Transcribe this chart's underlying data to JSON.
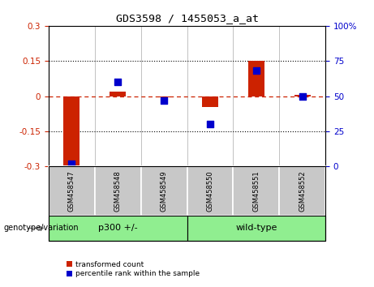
{
  "title": "GDS3598 / 1455053_a_at",
  "samples": [
    "GSM458547",
    "GSM458548",
    "GSM458549",
    "GSM458550",
    "GSM458551",
    "GSM458552"
  ],
  "red_values": [
    -0.295,
    0.018,
    -0.004,
    -0.048,
    0.15,
    0.004
  ],
  "blue_values_pct": [
    2,
    60,
    47,
    30,
    68,
    50
  ],
  "ylim_left": [
    -0.3,
    0.3
  ],
  "ylim_right": [
    0,
    100
  ],
  "yticks_left": [
    -0.3,
    -0.15,
    0,
    0.15,
    0.3
  ],
  "yticks_right": [
    0,
    25,
    50,
    75,
    100
  ],
  "hlines_dotted": [
    0.15,
    -0.15
  ],
  "red_color": "#CC2200",
  "blue_color": "#0000CC",
  "bar_width": 0.35,
  "blue_marker_size": 35,
  "legend_red_label": "transformed count",
  "legend_blue_label": "percentile rank within the sample",
  "genotype_label": "genotype/variation",
  "group_p300_label": "p300 +/-",
  "group_wt_label": "wild-type",
  "group_color": "#90EE90",
  "sample_box_color": "#C8C8C8",
  "plot_bg": "#FFFFFF",
  "spine_color": "#999999"
}
